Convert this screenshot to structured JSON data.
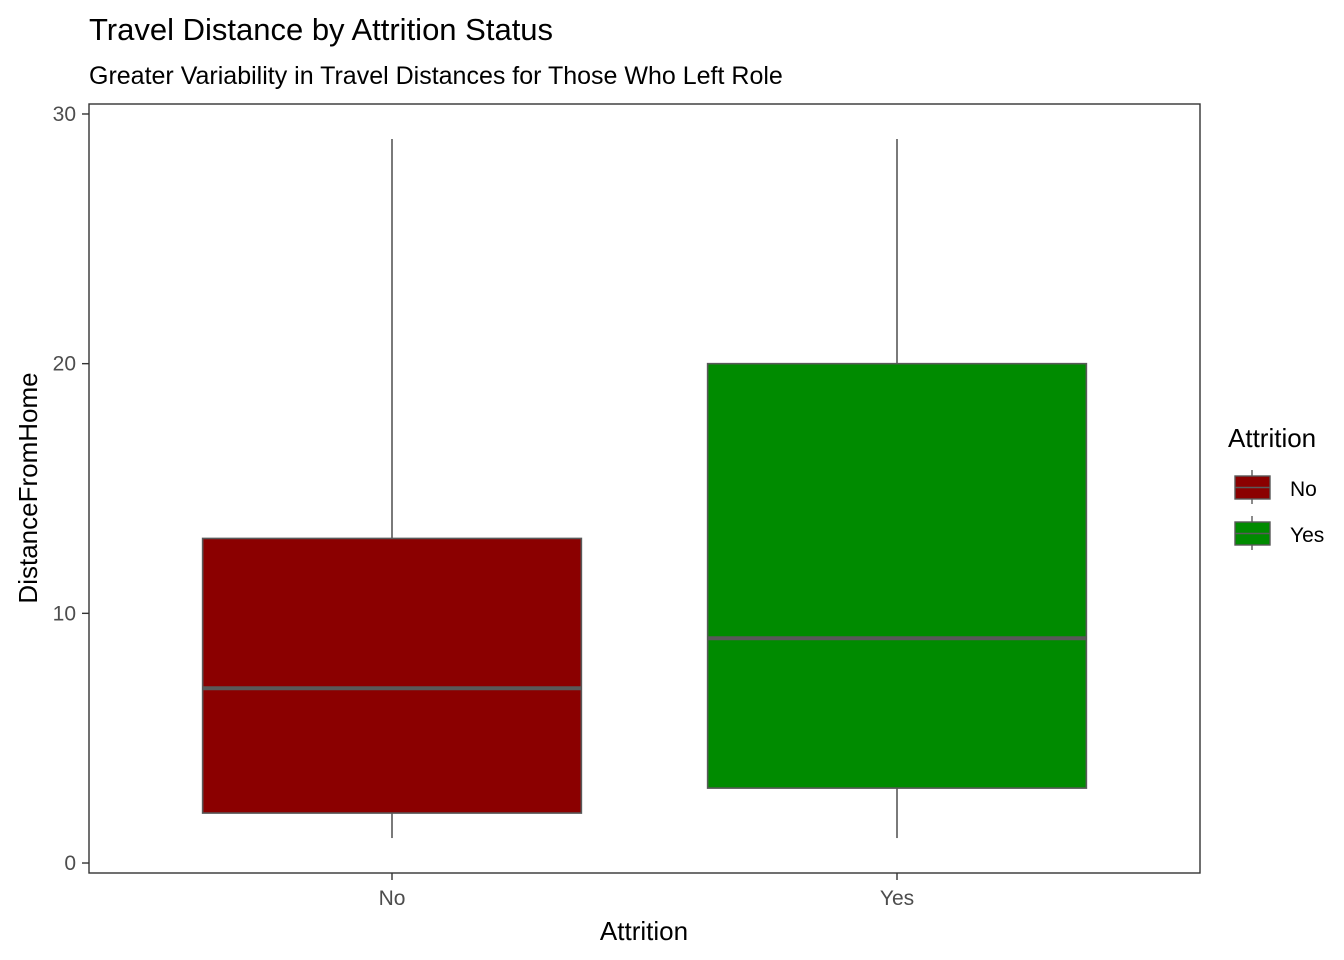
{
  "chart_data": {
    "type": "boxplot",
    "title": "Travel Distance by Attrition Status",
    "subtitle": "Greater Variability in Travel Distances for Those Who Left Role",
    "xlabel": "Attrition",
    "ylabel": "DistanceFromHome",
    "categories": [
      "No",
      "Yes"
    ],
    "boxes": [
      {
        "category": "No",
        "min": 1,
        "q1": 2,
        "median": 7,
        "q3": 13,
        "max": 29,
        "fill": "#8b0000"
      },
      {
        "category": "Yes",
        "min": 1,
        "q1": 3,
        "median": 9,
        "q3": 20,
        "max": 29,
        "fill": "#008b00"
      }
    ],
    "ylim": [
      -0.4,
      30.4
    ],
    "yticks": [
      0,
      10,
      20,
      30
    ],
    "grid": false,
    "legend": {
      "title": "Attrition",
      "position": "right",
      "items": [
        {
          "label": "No",
          "color": "#8b0000"
        },
        {
          "label": "Yes",
          "color": "#008b00"
        }
      ]
    },
    "colors": {
      "box_outline": "#595959",
      "whisker": "#595959",
      "median": "#595959",
      "panel_border": "#333333"
    }
  }
}
